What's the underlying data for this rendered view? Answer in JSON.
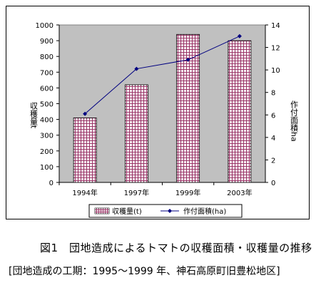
{
  "chart_data": {
    "type": "bar",
    "categories": [
      "1994年",
      "1997年",
      "1999年",
      "2003年"
    ],
    "series": [
      {
        "name": "収穫量(t)",
        "kind": "bar",
        "axis": "left",
        "values": [
          410,
          620,
          940,
          900
        ]
      },
      {
        "name": "作付面積(ha)",
        "kind": "line",
        "axis": "right",
        "values": [
          6.1,
          10.1,
          10.9,
          13.0
        ]
      }
    ],
    "ylabel": "収穫量t",
    "y2label": "作付面積ha",
    "ylim": [
      0,
      1000
    ],
    "y2lim": [
      0,
      14
    ],
    "yticks": [
      "0",
      "100",
      "200",
      "300",
      "400",
      "500",
      "600",
      "700",
      "800",
      "900",
      "1000"
    ],
    "y2ticks": [
      "0",
      "2",
      "4",
      "6",
      "8",
      "10",
      "12",
      "14"
    ],
    "legend_position": "bottom",
    "grid": false,
    "colors": {
      "plot_bg": "#c0c0c0",
      "bar_fill": "#ffffff",
      "bar_grid": "#993366",
      "line": "#000080",
      "marker": "#000080"
    }
  },
  "caption": {
    "title": "図1　団地造成によるトマトの収穫面積・収穫量の推移",
    "note": "[団地造成の工期：1995～1999 年、神石高原町旧豊松地区]"
  }
}
